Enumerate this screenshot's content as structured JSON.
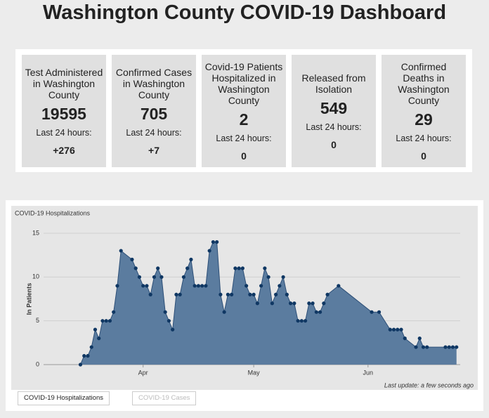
{
  "title": "Washington County COVID-19 Dashboard",
  "cards": [
    {
      "label": "Test Administered in Washington County",
      "value": 19595,
      "change_label": "Last 24 hours:",
      "change": "+276"
    },
    {
      "label": "Confirmed Cases in Washington County",
      "value": 705,
      "change_label": "Last 24 hours:",
      "change": "+7"
    },
    {
      "label": "Covid-19 Patients Hospitalized in Washington County",
      "value": 2,
      "change_label": "Last 24 hours:",
      "change": "0"
    },
    {
      "label": "Released from Isolation",
      "value": 549,
      "change_label": "Last 24 hours:",
      "change": "0"
    },
    {
      "label": "Confirmed Deaths in Washington County",
      "value": 29,
      "change_label": "Last 24 hours:",
      "change": "0"
    }
  ],
  "chart_data": {
    "type": "area",
    "title": "COVID-19 Hospitalizations",
    "ylabel": "In Patients",
    "annotation": "Last update: a few seconds ago",
    "x": [
      75,
      76,
      77,
      78,
      79,
      80,
      81,
      82,
      83,
      84,
      85,
      86,
      89,
      90,
      91,
      92,
      93,
      94,
      95,
      96,
      97,
      98,
      99,
      100,
      101,
      102,
      103,
      104,
      105,
      106,
      107,
      108,
      109,
      110,
      111,
      112,
      113,
      114,
      115,
      116,
      117,
      118,
      119,
      120,
      121,
      122,
      123,
      124,
      125,
      126,
      127,
      128,
      129,
      130,
      131,
      132,
      133,
      134,
      135,
      136,
      137,
      138,
      139,
      140,
      141,
      142,
      145,
      154,
      156,
      159,
      160,
      161,
      162,
      163,
      166,
      167,
      168,
      169,
      174,
      175,
      176,
      177
    ],
    "values": [
      0,
      1,
      1,
      2,
      4,
      3,
      5,
      5,
      5,
      6,
      9,
      13,
      12,
      11,
      10,
      9,
      9,
      8,
      10,
      11,
      10,
      6,
      5,
      4,
      8,
      8,
      10,
      11,
      12,
      9,
      9,
      9,
      9,
      13,
      14,
      14,
      8,
      6,
      8,
      8,
      11,
      11,
      11,
      9,
      8,
      8,
      7,
      9,
      11,
      10,
      7,
      8,
      9,
      10,
      8,
      7,
      7,
      5,
      5,
      5,
      7,
      7,
      6,
      6,
      7,
      8,
      9,
      6,
      6,
      4,
      4,
      4,
      4,
      3,
      2,
      3,
      2,
      2,
      2,
      2,
      2,
      2
    ],
    "color": "#5b7c9f",
    "line_color": "#2d4f77",
    "marker_color": "#0f3763",
    "xlim": [
      65,
      178
    ],
    "xticks": [
      {
        "value": 92,
        "label": "Apr"
      },
      {
        "value": 122,
        "label": "May"
      },
      {
        "value": 153,
        "label": "Jun"
      }
    ],
    "ylim": [
      0,
      15
    ],
    "yticks": [
      0,
      5,
      10,
      15
    ],
    "grid": true
  },
  "tabs": [
    "COVID-19 Hospitalizations",
    "COVID-19 Cases"
  ]
}
